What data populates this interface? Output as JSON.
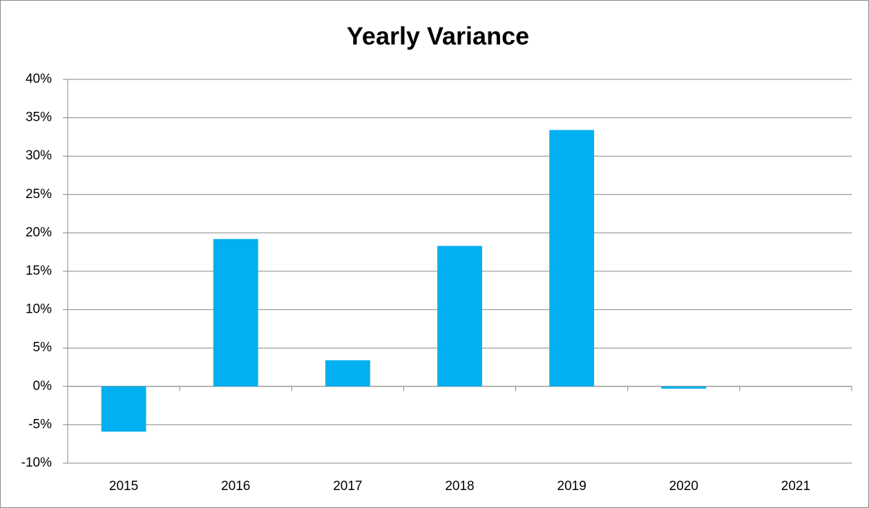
{
  "chart_data": {
    "type": "bar",
    "title": "Yearly Variance",
    "categories": [
      "2015",
      "2016",
      "2017",
      "2018",
      "2019",
      "2020",
      "2021"
    ],
    "values": [
      -5.9,
      19.2,
      3.4,
      18.3,
      33.4,
      -0.3,
      0
    ],
    "color": "#00b0f0",
    "ylim": [
      -10,
      40
    ],
    "yticks": [
      {
        "value": -10,
        "label": "-10%"
      },
      {
        "value": -5,
        "label": "-5%"
      },
      {
        "value": 0,
        "label": "0%"
      },
      {
        "value": 5,
        "label": "5%"
      },
      {
        "value": 10,
        "label": "10%"
      },
      {
        "value": 15,
        "label": "15%"
      },
      {
        "value": 20,
        "label": "20%"
      },
      {
        "value": 25,
        "label": "25%"
      },
      {
        "value": 30,
        "label": "30%"
      },
      {
        "value": 35,
        "label": "35%"
      },
      {
        "value": 40,
        "label": "40%"
      }
    ],
    "grid": true
  }
}
